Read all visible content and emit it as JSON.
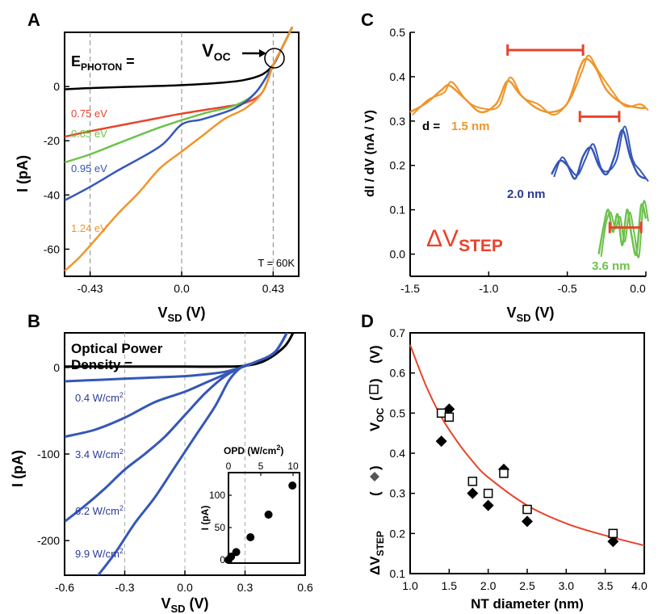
{
  "panels": {
    "A": {
      "letter": "A",
      "ylabel": "I (pA)",
      "xlabel_main": "V",
      "xlabel_sub": "SD",
      "xlabel_unit": " (V)",
      "ephoton_main": "E",
      "ephoton_sub": "PHOTON",
      "ephoton_eq": " =",
      "voc_main": "V",
      "voc_sub": "OC",
      "temp": "T = 60K",
      "xticks": [
        "-0.43",
        "0.0",
        "0.43"
      ],
      "yticks": [
        "0",
        "-20",
        "-40",
        "-60"
      ]
    },
    "B": {
      "letter": "B",
      "ylabel": "I (pA)",
      "xlabel_main": "V",
      "xlabel_sub": "SD",
      "xlabel_unit": " (V)",
      "title_line1": "Optical Power",
      "title_line2": "Density =",
      "xticks": [
        "-0.6",
        "-0.3",
        "0.0",
        "0.3",
        "0.6"
      ],
      "yticks": [
        "0",
        "-100",
        "-200"
      ],
      "inset_xlabel": "OPD (W/cm",
      "inset_xlabel_sup": "2",
      "inset_xlabel_end": ")",
      "inset_ylabel": "I (pA)",
      "inset_xticks": [
        "0",
        "5",
        "10"
      ],
      "inset_yticks": [
        "0",
        "50",
        "100"
      ]
    },
    "C": {
      "letter": "C",
      "ylabel": "dI / dV  (nA / V)",
      "xlabel_main": "V",
      "xlabel_sub": "SD",
      "xlabel_unit": " (V)",
      "d_label": "d =",
      "delta_main": "ΔV",
      "delta_sub": "STEP",
      "xticks": [
        "-1.5",
        "-1.0",
        "-0.5",
        "0.0"
      ],
      "yticks": [
        "0.5",
        "0.4",
        "0.3",
        "0.2",
        "0.1",
        "0.0"
      ]
    },
    "D": {
      "letter": "D",
      "xlabel": "NT diameter (nm)",
      "ylabel_voc_main": "V",
      "ylabel_voc_sub": "OC",
      "ylabel_voc_end": "(V)",
      "ylabel_step_main": "ΔV",
      "ylabel_step_sub": "STEP",
      "xticks": [
        "1.0",
        "1.5",
        "2.0",
        "2.5",
        "3.0",
        "3.5",
        "4.0"
      ],
      "yticks": [
        "0.7",
        "0.6",
        "0.5",
        "0.4",
        "0.3",
        "0.2",
        "0.1"
      ]
    }
  },
  "colors": {
    "black": "#000000",
    "red": "#e8432a",
    "green": "#6cc24a",
    "blue": "#3557b7",
    "orange": "#f0952a",
    "fitred": "#e8432a",
    "label_blue": "#2a3a9a"
  },
  "chart_data": [
    {
      "panel": "A",
      "type": "line",
      "xlabel": "VSD (V)",
      "ylabel": "I (pA)",
      "xlim": [
        -0.55,
        0.55
      ],
      "ylim": [
        -70,
        20
      ],
      "series": [
        {
          "name": "E_PHOTON =",
          "color": "#000000",
          "x": [
            -0.55,
            -0.4,
            -0.2,
            0.0,
            0.2,
            0.3,
            0.38,
            0.43,
            0.47,
            0.52
          ],
          "y": [
            -1,
            -0.5,
            0,
            0.5,
            1.5,
            2.5,
            4.5,
            8,
            14,
            22
          ]
        },
        {
          "name": "0.75 eV",
          "color": "#e8432a",
          "x": [
            -0.55,
            -0.4,
            -0.2,
            0.0,
            0.2,
            0.3,
            0.38,
            0.43,
            0.47,
            0.52
          ],
          "y": [
            -18.5,
            -16,
            -13,
            -10,
            -7.5,
            -6,
            -2,
            8,
            14,
            22
          ]
        },
        {
          "name": "0.85 eV",
          "color": "#6cc24a",
          "x": [
            -0.55,
            -0.43,
            -0.3,
            -0.1,
            0.1,
            0.25,
            0.35,
            0.43,
            0.47,
            0.52
          ],
          "y": [
            -28,
            -25,
            -21,
            -15,
            -10,
            -7,
            -2,
            8,
            14,
            22
          ]
        },
        {
          "name": "0.95 eV",
          "color": "#3557b7",
          "x": [
            -0.55,
            -0.43,
            -0.3,
            -0.1,
            0.0,
            0.1,
            0.25,
            0.35,
            0.43,
            0.47,
            0.52
          ],
          "y": [
            -42,
            -37,
            -31,
            -22,
            -14,
            -12,
            -8,
            -2,
            8,
            14,
            22
          ]
        },
        {
          "name": "1.24 eV",
          "color": "#f0952a",
          "x": [
            -0.55,
            -0.48,
            -0.4,
            -0.3,
            -0.2,
            -0.1,
            0.0,
            0.1,
            0.2,
            0.3,
            0.38,
            0.43,
            0.47,
            0.52
          ],
          "y": [
            -68,
            -63,
            -56,
            -47,
            -39,
            -30,
            -24,
            -18,
            -12,
            -8,
            -2,
            8,
            14,
            22
          ]
        }
      ],
      "annotation": "T = 60K",
      "vlines": [
        -0.43,
        0.0,
        0.43
      ]
    },
    {
      "panel": "B",
      "type": "line",
      "xlabel": "VSD (V)",
      "ylabel": "I (pA)",
      "xlim": [
        -0.6,
        0.6
      ],
      "ylim": [
        -240,
        40
      ],
      "series": [
        {
          "name": "Optical Power Density =",
          "color": "#000000",
          "x": [
            -0.6,
            -0.3,
            0.0,
            0.2,
            0.3,
            0.4,
            0.5,
            0.55
          ],
          "y": [
            1,
            1,
            1,
            1,
            2,
            8,
            25,
            45
          ]
        },
        {
          "name": "0.4 W/cm2",
          "color": "#3557b7",
          "x": [
            -0.6,
            -0.4,
            -0.2,
            0.0,
            0.1,
            0.2,
            0.28,
            0.35,
            0.45,
            0.52
          ],
          "y": [
            -16,
            -14,
            -12,
            -10,
            -8,
            -5,
            0,
            6,
            18,
            45
          ]
        },
        {
          "name": "3.4 W/cm2",
          "color": "#3557b7",
          "x": [
            -0.6,
            -0.45,
            -0.3,
            -0.15,
            0.0,
            0.1,
            0.2,
            0.28,
            0.35,
            0.45,
            0.52
          ],
          "y": [
            -80,
            -72,
            -58,
            -40,
            -28,
            -18,
            -8,
            0,
            6,
            18,
            45
          ]
        },
        {
          "name": "6.2 W/cm2",
          "color": "#3557b7",
          "x": [
            -0.6,
            -0.5,
            -0.4,
            -0.3,
            -0.2,
            -0.1,
            0.0,
            0.1,
            0.2,
            0.28,
            0.35,
            0.45,
            0.52
          ],
          "y": [
            -178,
            -160,
            -140,
            -118,
            -100,
            -80,
            -55,
            -30,
            -10,
            0,
            6,
            18,
            45
          ]
        },
        {
          "name": "9.9 W/cm2",
          "color": "#3557b7",
          "x": [
            -0.45,
            -0.35,
            -0.25,
            -0.15,
            -0.05,
            0.05,
            0.15,
            0.22,
            0.28,
            0.35,
            0.45,
            0.52
          ],
          "y": [
            -245,
            -215,
            -180,
            -150,
            -115,
            -80,
            -45,
            -15,
            0,
            6,
            18,
            45
          ]
        }
      ],
      "vlines": [
        -0.3,
        0.0,
        0.3
      ],
      "inset": {
        "xlabel": "OPD (W/cm2)",
        "ylabel": "I (pA)",
        "xlim": [
          0,
          11
        ],
        "ylim": [
          -5,
          135
        ],
        "points": [
          [
            0,
            0
          ],
          [
            0.4,
            5
          ],
          [
            1.2,
            12
          ],
          [
            3.4,
            35
          ],
          [
            6.2,
            70
          ],
          [
            9.9,
            115
          ]
        ]
      }
    },
    {
      "panel": "C",
      "type": "line",
      "xlabel": "VSD (V)",
      "ylabel": "dI / dV (nA / V)",
      "xlim": [
        -1.5,
        0.0
      ],
      "ylim": [
        -0.05,
        0.5
      ],
      "series": [
        {
          "name": "1.5 nm",
          "color": "#f0952a",
          "x": [
            -1.5,
            -1.4,
            -1.3,
            -1.25,
            -1.15,
            -1.05,
            -0.95,
            -0.88,
            -0.8,
            -0.7,
            -0.6,
            -0.5,
            -0.42,
            -0.38,
            -0.32,
            -0.25,
            -0.15,
            -0.05,
            0.0
          ],
          "y": [
            0.32,
            0.34,
            0.37,
            0.38,
            0.35,
            0.32,
            0.34,
            0.39,
            0.36,
            0.33,
            0.32,
            0.34,
            0.42,
            0.44,
            0.42,
            0.37,
            0.34,
            0.33,
            0.33
          ]
        },
        {
          "name": "2.0 nm",
          "color": "#3557b7",
          "x": [
            -0.6,
            -0.55,
            -0.5,
            -0.45,
            -0.4,
            -0.35,
            -0.3,
            -0.25,
            -0.2,
            -0.15,
            -0.1,
            -0.05,
            0.0
          ],
          "y": [
            0.18,
            0.21,
            0.2,
            0.17,
            0.22,
            0.24,
            0.2,
            0.18,
            0.22,
            0.28,
            0.22,
            0.18,
            0.17
          ]
        },
        {
          "name": "3.6 nm",
          "color": "#6cc24a",
          "x": [
            -0.3,
            -0.27,
            -0.24,
            -0.21,
            -0.18,
            -0.15,
            -0.12,
            -0.09,
            -0.06,
            -0.03,
            0.0
          ],
          "y": [
            0.0,
            0.06,
            0.1,
            0.05,
            0.09,
            0.02,
            0.1,
            0.04,
            0.0,
            0.11,
            0.08
          ]
        }
      ],
      "step_bars": [
        {
          "x1": -0.88,
          "x2": -0.4,
          "y": 0.46
        },
        {
          "x1": -0.42,
          "x2": -0.17,
          "y": 0.31
        },
        {
          "x1": -0.23,
          "x2": -0.03,
          "y": 0.06
        }
      ]
    },
    {
      "panel": "D",
      "type": "scatter",
      "xlabel": "NT diameter (nm)",
      "xlim": [
        1.0,
        4.0
      ],
      "ylim": [
        0.1,
        0.7
      ],
      "series": [
        {
          "name": "VOC",
          "marker": "open-square",
          "x": [
            1.4,
            1.5,
            1.8,
            2.0,
            2.2,
            2.5,
            3.6
          ],
          "y": [
            0.5,
            0.49,
            0.33,
            0.3,
            0.35,
            0.26,
            0.2
          ]
        },
        {
          "name": "ΔVSTEP",
          "marker": "filled-diamond",
          "x": [
            1.4,
            1.5,
            1.8,
            2.0,
            2.2,
            2.5,
            3.6
          ],
          "y": [
            0.43,
            0.51,
            0.3,
            0.27,
            0.36,
            0.23,
            0.18
          ]
        }
      ],
      "fit": {
        "color": "#e8432a",
        "x": [
          1.0,
          1.2,
          1.4,
          1.6,
          1.8,
          2.0,
          2.5,
          3.0,
          3.5,
          4.0
        ],
        "y": [
          0.67,
          0.57,
          0.49,
          0.43,
          0.38,
          0.34,
          0.27,
          0.225,
          0.195,
          0.17
        ]
      }
    }
  ],
  "inline_labels": {
    "A": [
      "0.75 eV",
      "0.85 eV",
      "0.95 eV",
      "1.24 eV"
    ],
    "B": [
      "0.4 W/cm",
      "3.4 W/cm",
      "6.2 W/cm",
      "9.9 W/cm"
    ],
    "B_sup": "2",
    "C": [
      "1.5 nm",
      "2.0 nm",
      "3.6 nm"
    ]
  }
}
